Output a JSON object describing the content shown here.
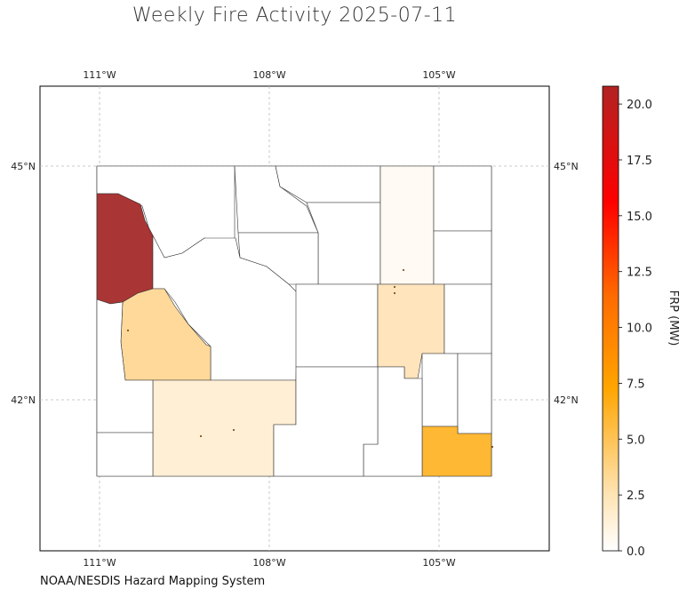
{
  "title": "Weekly Fire Activity 2025-07-11",
  "source": "NOAA/NESDIS Hazard Mapping System",
  "map": {
    "lon_ticks": [
      "111°W",
      "108°W",
      "105°W"
    ],
    "lat_ticks": [
      "45°N",
      "42°N"
    ],
    "region": "Wyoming counties",
    "county_colors": {
      "teton_like": "#a52a2a",
      "lincoln_like": "#ffd99a",
      "carbon_like": "#ffefd5",
      "weston_like": "#fffaf3",
      "converse_like": "#ffe4bc",
      "laramie_like": "#ffb833"
    }
  },
  "colorbar": {
    "label": "FRP (MW)",
    "ticks": [
      "0.0",
      "2.5",
      "5.0",
      "7.5",
      "10.0",
      "12.5",
      "15.0",
      "17.5",
      "20.0"
    ],
    "min": 0,
    "max": 20.8,
    "colors": [
      "#ffffff",
      "#ffe4b5",
      "#ffa500",
      "#ff6a00",
      "#ff0000",
      "#b22222"
    ]
  }
}
